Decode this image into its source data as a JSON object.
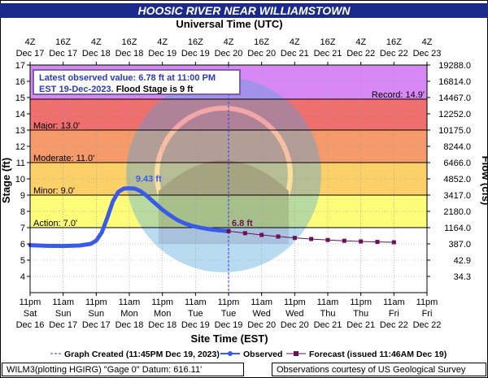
{
  "title": "HOOSIC RIVER NEAR WILLIAMSTOWN",
  "top_axis_title": "Universal Time (UTC)",
  "notice": {
    "line1": "Latest observed value: 6.78 ft at 11:00 PM",
    "line2a": "EST 19-Dec-2023.",
    "line2b": " Flood Stage is 9 ft"
  },
  "legend": {
    "graph_created": "Graph Created (11:45PM Dec 19, 2023)",
    "observed": "Observed",
    "forecast": "Forecast (issued 11:46AM Dec 19)"
  },
  "footer": {
    "left": "WILM3(plotting HGIRG) \"Gage 0\" Datum: 616.11'",
    "right": "Observations courtesy of US Geological Survey"
  },
  "colors": {
    "record_band": "#d888f5",
    "major_band": "#ef6f6f",
    "moderate_band": "#f59a6b",
    "minor_band": "#fbd068",
    "action_band": "#fdfd7a",
    "observed": "#3a5ae8",
    "forecast": "#6b0f5a",
    "title_bar": "#1b2a8a"
  },
  "chart_data": {
    "type": "line",
    "xlabel": "Site Time (EST)",
    "ylabel": "Stage (ft)",
    "y2label": "Flow (cfs)",
    "ylim": [
      3,
      17
    ],
    "xlim_hours": [
      0,
      144
    ],
    "x_ticks_bottom": [
      {
        "t": "11pm",
        "d": "Sat",
        "m": "Dec 16"
      },
      {
        "t": "11am",
        "d": "Sun",
        "m": "Dec 17"
      },
      {
        "t": "11pm",
        "d": "Sun",
        "m": "Dec 17"
      },
      {
        "t": "11am",
        "d": "Mon",
        "m": "Dec 18"
      },
      {
        "t": "11pm",
        "d": "Mon",
        "m": "Dec 18"
      },
      {
        "t": "11am",
        "d": "Tue",
        "m": "Dec 19"
      },
      {
        "t": "11pm",
        "d": "Tue",
        "m": "Dec 19"
      },
      {
        "t": "11am",
        "d": "Wed",
        "m": "Dec 20"
      },
      {
        "t": "11pm",
        "d": "Wed",
        "m": "Dec 20"
      },
      {
        "t": "11am",
        "d": "Thu",
        "m": "Dec 21"
      },
      {
        "t": "11pm",
        "d": "Thu",
        "m": "Dec 21"
      },
      {
        "t": "11am",
        "d": "Fri",
        "m": "Dec 22"
      },
      {
        "t": "11pm",
        "d": "Fri",
        "m": "Dec 22"
      }
    ],
    "x_ticks_top": [
      {
        "t": "4Z",
        "m": "Dec 17"
      },
      {
        "t": "16Z",
        "m": "Dec 17"
      },
      {
        "t": "4Z",
        "m": "Dec 18"
      },
      {
        "t": "16Z",
        "m": "Dec 18"
      },
      {
        "t": "4Z",
        "m": "Dec 19"
      },
      {
        "t": "16Z",
        "m": "Dec 19"
      },
      {
        "t": "4Z",
        "m": "Dec 20"
      },
      {
        "t": "16Z",
        "m": "Dec 20"
      },
      {
        "t": "4Z",
        "m": "Dec 21"
      },
      {
        "t": "16Z",
        "m": "Dec 21"
      },
      {
        "t": "4Z",
        "m": "Dec 22"
      },
      {
        "t": "16Z",
        "m": "Dec 22"
      },
      {
        "t": "4Z",
        "m": "Dec 23"
      }
    ],
    "y_ticks": [
      4,
      5,
      6,
      7,
      8,
      9,
      10,
      11,
      12,
      13,
      14,
      15,
      16,
      17
    ],
    "flow_ticks": [
      {
        "stage": 4,
        "label": "34.3"
      },
      {
        "stage": 5,
        "label": "42.9"
      },
      {
        "stage": 6,
        "label": "387.0"
      },
      {
        "stage": 7,
        "label": "1164.0"
      },
      {
        "stage": 8,
        "label": "2180.0"
      },
      {
        "stage": 9,
        "label": "3417.0"
      },
      {
        "stage": 10,
        "label": "4852.0"
      },
      {
        "stage": 11,
        "label": "6466.0"
      },
      {
        "stage": 12,
        "label": "8244.0"
      },
      {
        "stage": 13,
        "label": "10175.0"
      },
      {
        "stage": 14,
        "label": "12252.0"
      },
      {
        "stage": 15,
        "label": "14467.0"
      },
      {
        "stage": 16,
        "label": "16814.0"
      },
      {
        "stage": 17,
        "label": "19288.0"
      }
    ],
    "bands": [
      {
        "from": 14.9,
        "to": 17,
        "color": "#d888f5",
        "name": "record"
      },
      {
        "from": 13.0,
        "to": 14.9,
        "color": "#ef6f6f",
        "name": "major"
      },
      {
        "from": 11.0,
        "to": 13.0,
        "color": "#f59a6b",
        "name": "moderate"
      },
      {
        "from": 9.0,
        "to": 11.0,
        "color": "#fbd068",
        "name": "minor"
      },
      {
        "from": 7.0,
        "to": 9.0,
        "color": "#fdfd7a",
        "name": "action"
      }
    ],
    "thresholds": [
      {
        "name": "Record: 14.9'",
        "value": 14.9,
        "side": "right"
      },
      {
        "name": "Major: 13.0'",
        "value": 13.0,
        "side": "left"
      },
      {
        "name": "Moderate: 11.0'",
        "value": 11.0,
        "side": "left"
      },
      {
        "name": "Minor: 9.0'",
        "value": 9.0,
        "side": "left"
      },
      {
        "name": "Action: 7.0'",
        "value": 7.0,
        "side": "left"
      }
    ],
    "graph_created_hour": 72,
    "peak_label": "9.43 ft",
    "peak_label_at": [
      43,
      9.43
    ],
    "last_label": "6.8 ft",
    "last_label_at": [
      72,
      6.8
    ],
    "observed": {
      "name": "Observed",
      "x": [
        0,
        6,
        12,
        18,
        22,
        24,
        26,
        28,
        30,
        32,
        34,
        36,
        38,
        40,
        42,
        44,
        46,
        48,
        50,
        52,
        54,
        56,
        58,
        60,
        62,
        64,
        66,
        68,
        70,
        72
      ],
      "y": [
        5.92,
        5.88,
        5.87,
        5.9,
        6.0,
        6.2,
        6.7,
        7.6,
        8.6,
        9.2,
        9.4,
        9.42,
        9.4,
        9.25,
        9.0,
        8.7,
        8.4,
        8.1,
        7.85,
        7.62,
        7.42,
        7.27,
        7.15,
        7.06,
        6.99,
        6.93,
        6.88,
        6.84,
        6.81,
        6.78
      ]
    },
    "forecast": {
      "name": "Forecast",
      "x": [
        72,
        78,
        84,
        90,
        96,
        102,
        108,
        114,
        120,
        126,
        132
      ],
      "y": [
        6.78,
        6.66,
        6.55,
        6.45,
        6.37,
        6.3,
        6.24,
        6.19,
        6.15,
        6.12,
        6.1
      ]
    }
  }
}
